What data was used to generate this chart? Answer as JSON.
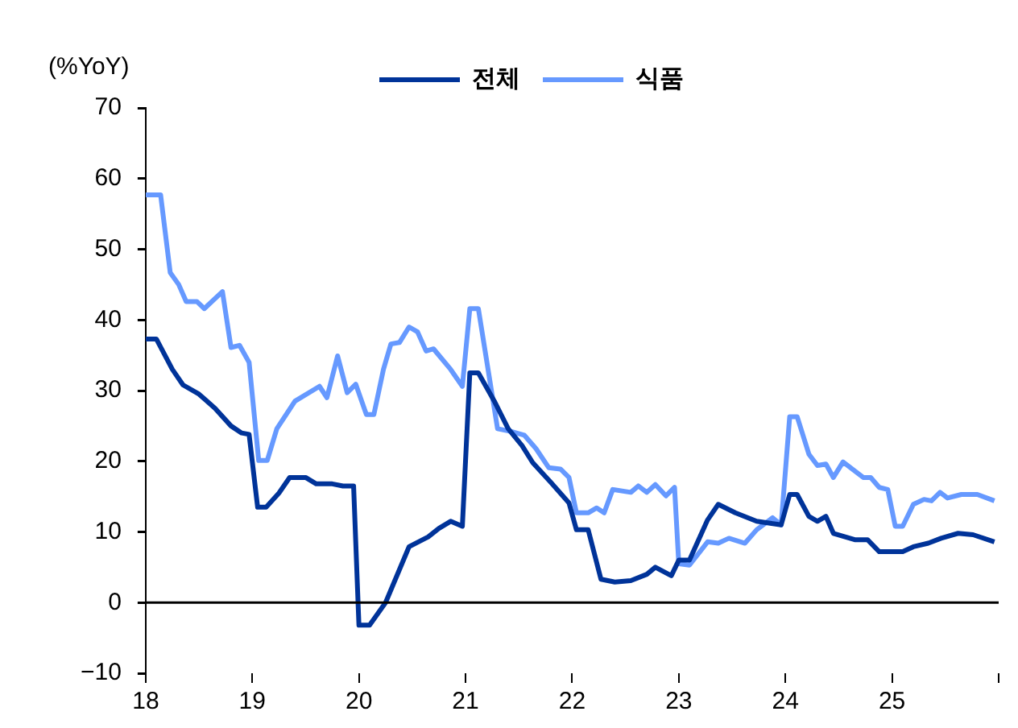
{
  "chart_data": {
    "type": "line",
    "ylabel": "(%YoY)",
    "legend": "top",
    "marker": "none",
    "line_style": "solid",
    "grid": false,
    "ref_lines": [
      {
        "axis": "y",
        "value": 0,
        "color": "#000000"
      }
    ],
    "xlim": [
      18,
      26
    ],
    "xticks": [
      18,
      19,
      20,
      21,
      22,
      23,
      24,
      25,
      {
        "value": 26,
        "label": null
      }
    ],
    "ylim": [
      -10,
      70
    ],
    "yticks": [
      -10,
      0,
      10,
      20,
      30,
      40,
      50,
      60,
      70
    ],
    "series": [
      {
        "name": "전체",
        "color": "#003399",
        "x": [
          18.0,
          18.1,
          18.25,
          18.35,
          18.5,
          18.65,
          18.8,
          18.9,
          18.97,
          19.05,
          19.13,
          19.25,
          19.35,
          19.5,
          19.6,
          19.75,
          19.85,
          19.95,
          20.0,
          20.1,
          20.25,
          20.47,
          20.65,
          20.75,
          20.86,
          20.97,
          21.04,
          21.12,
          21.27,
          21.4,
          21.53,
          21.63,
          21.8,
          21.97,
          22.04,
          22.15,
          22.27,
          22.4,
          22.55,
          22.7,
          22.78,
          22.93,
          23.0,
          23.1,
          23.27,
          23.37,
          23.53,
          23.73,
          23.96,
          24.04,
          24.11,
          24.22,
          24.3,
          24.38,
          24.45,
          24.65,
          24.77,
          24.88,
          25.1,
          25.2,
          25.34,
          25.46,
          25.62,
          25.76,
          25.96
        ],
        "values": [
          37.3,
          37.3,
          33,
          30.8,
          29.5,
          27.5,
          25,
          24,
          23.8,
          13.5,
          13.5,
          15.5,
          17.7,
          17.7,
          16.8,
          16.8,
          16.5,
          16.5,
          -3.2,
          -3.2,
          0,
          7.9,
          9.3,
          10.5,
          11.5,
          10.8,
          32.5,
          32.5,
          28.5,
          24.6,
          22.2,
          19.8,
          17,
          14.1,
          10.3,
          10.3,
          3.3,
          2.9,
          3.1,
          4,
          5,
          3.8,
          6,
          6,
          11.7,
          13.9,
          12.7,
          11.5,
          11,
          15.3,
          15.3,
          12.2,
          11.5,
          12.2,
          9.8,
          8.9,
          8.9,
          7.2,
          7.2,
          7.9,
          8.4,
          9.1,
          9.8,
          9.6,
          8.6
        ]
      },
      {
        "name": "식품",
        "color": "#6699ff",
        "x": [
          18.0,
          18.14,
          18.23,
          18.31,
          18.38,
          18.48,
          18.55,
          18.72,
          18.8,
          18.88,
          18.97,
          19.06,
          19.14,
          19.23,
          19.4,
          19.63,
          19.7,
          19.8,
          19.89,
          19.97,
          20.07,
          20.14,
          20.23,
          20.3,
          20.38,
          20.47,
          20.55,
          20.63,
          20.7,
          20.86,
          20.97,
          21.04,
          21.12,
          21.3,
          21.43,
          21.55,
          21.66,
          21.78,
          21.89,
          21.97,
          22.04,
          22.15,
          22.23,
          22.3,
          22.38,
          22.55,
          22.62,
          22.7,
          22.78,
          22.88,
          22.96,
          23.0,
          23.1,
          23.27,
          23.37,
          23.47,
          23.62,
          23.73,
          23.88,
          23.96,
          24.04,
          24.11,
          24.22,
          24.3,
          24.38,
          24.45,
          24.54,
          24.73,
          24.8,
          24.88,
          24.96,
          25.03,
          25.1,
          25.2,
          25.3,
          25.37,
          25.45,
          25.52,
          25.65,
          25.8,
          25.96
        ],
        "values": [
          57.7,
          57.7,
          46.7,
          45,
          42.6,
          42.6,
          41.6,
          44,
          36.1,
          36.4,
          34,
          20.1,
          20.1,
          24.6,
          28.5,
          30.6,
          29,
          34.9,
          29.7,
          30.9,
          26.6,
          26.6,
          33,
          36.6,
          36.8,
          39,
          38.3,
          35.6,
          35.9,
          33,
          30.6,
          41.6,
          41.6,
          24.6,
          24.2,
          23.7,
          21.8,
          19.1,
          18.9,
          17.7,
          12.7,
          12.7,
          13.4,
          12.7,
          16,
          15.6,
          16.5,
          15.6,
          16.7,
          15.1,
          16.3,
          5.5,
          5.3,
          8.6,
          8.4,
          9.1,
          8.4,
          10.3,
          12,
          11,
          26.3,
          26.3,
          21,
          19.4,
          19.6,
          17.7,
          19.9,
          17.7,
          17.7,
          16.3,
          16,
          10.8,
          10.8,
          13.9,
          14.6,
          14.4,
          15.6,
          14.8,
          15.3,
          15.3,
          14.4
        ]
      }
    ]
  }
}
